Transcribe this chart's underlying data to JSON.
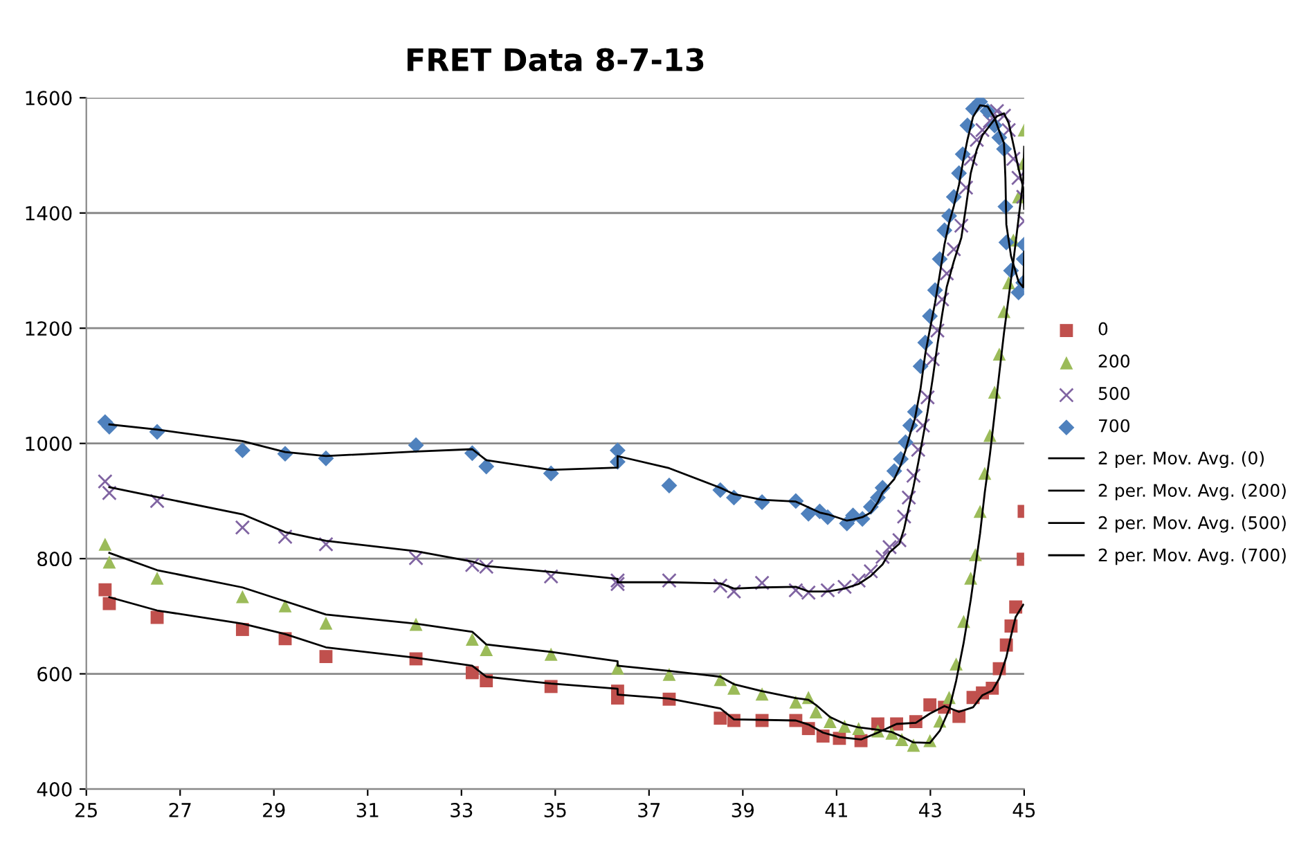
{
  "chart_data": {
    "type": "scatter",
    "title": "FRET Data 8-7-13",
    "xlim": [
      25,
      45
    ],
    "xticks": [
      25,
      27,
      29,
      31,
      33,
      35,
      37,
      39,
      41,
      43,
      45
    ],
    "ylim": [
      400,
      1600
    ],
    "yticks": [
      400,
      600,
      800,
      1000,
      1200,
      1400,
      1600
    ],
    "grid": "y",
    "legend": "right",
    "series": [
      {
        "name": "0",
        "color": "#c0504d",
        "marker": "square",
        "x": [
          25.4,
          25.49,
          26.51,
          28.33,
          29.24,
          30.11,
          32.03,
          33.23,
          33.53,
          34.91,
          36.33,
          36.33,
          37.43,
          38.52,
          38.81,
          39.41,
          40.13,
          40.4,
          40.71,
          41.06,
          41.52,
          41.88,
          42.28,
          42.69,
          42.99,
          43.3,
          43.61,
          43.91,
          44.11,
          44.32,
          44.47,
          44.62,
          44.72,
          44.82,
          44.98,
          45.0
        ],
        "values": [
          746,
          722,
          698,
          677,
          661,
          630,
          626,
          602,
          588,
          578,
          570,
          558,
          556,
          523,
          519,
          519,
          519,
          505,
          492,
          488,
          484,
          513,
          513,
          517,
          546,
          542,
          526,
          559,
          567,
          575,
          609,
          650,
          683,
          716,
          799,
          882
        ]
      },
      {
        "name": "200",
        "color": "#9bbb59",
        "marker": "triangle",
        "x": [
          25.4,
          25.49,
          26.51,
          28.33,
          29.24,
          30.11,
          32.03,
          33.23,
          33.53,
          34.91,
          36.33,
          37.43,
          38.52,
          38.81,
          39.41,
          40.13,
          40.4,
          40.56,
          40.86,
          41.17,
          41.47,
          41.88,
          42.18,
          42.39,
          42.64,
          42.99,
          43.2,
          43.4,
          43.55,
          43.71,
          43.86,
          43.96,
          44.06,
          44.16,
          44.27,
          44.37,
          44.47,
          44.57,
          44.67,
          44.77,
          44.88,
          44.98,
          45.0
        ],
        "values": [
          825,
          794,
          766,
          734,
          718,
          688,
          686,
          660,
          642,
          634,
          610,
          599,
          590,
          575,
          565,
          551,
          559,
          534,
          517,
          509,
          505,
          501,
          497,
          486,
          476,
          484,
          518,
          559,
          617,
          691,
          766,
          807,
          882,
          948,
          1014,
          1089,
          1155,
          1229,
          1279,
          1353,
          1428,
          1486,
          1544
        ]
      },
      {
        "name": "500",
        "color": "#8064a2",
        "marker": "cross",
        "x": [
          25.4,
          25.49,
          26.51,
          28.33,
          29.24,
          30.11,
          32.03,
          33.23,
          33.53,
          34.91,
          36.33,
          36.33,
          37.43,
          38.52,
          38.81,
          39.41,
          40.13,
          40.4,
          40.81,
          41.17,
          41.47,
          41.73,
          41.98,
          42.13,
          42.34,
          42.44,
          42.54,
          42.64,
          42.74,
          42.84,
          42.94,
          43.05,
          43.15,
          43.25,
          43.35,
          43.5,
          43.66,
          43.76,
          43.86,
          43.99,
          44.11,
          44.27,
          44.42,
          44.57,
          44.67,
          44.77,
          44.88,
          44.98,
          45.0
        ],
        "values": [
          934,
          914,
          900,
          854,
          838,
          825,
          801,
          789,
          786,
          769,
          762,
          756,
          762,
          753,
          743,
          758,
          745,
          741,
          745,
          751,
          762,
          778,
          803,
          820,
          832,
          873,
          906,
          944,
          989,
          1031,
          1080,
          1146,
          1196,
          1250,
          1295,
          1337,
          1378,
          1444,
          1494,
          1527,
          1544,
          1560,
          1577,
          1569,
          1544,
          1494,
          1461,
          1428,
          1386
        ]
      },
      {
        "name": "700",
        "color": "#4f81bd",
        "marker": "diamond",
        "x": [
          25.4,
          25.49,
          26.51,
          28.33,
          29.24,
          30.11,
          32.03,
          33.23,
          33.53,
          34.91,
          36.33,
          36.33,
          37.43,
          38.52,
          38.81,
          39.41,
          40.13,
          40.4,
          40.64,
          40.81,
          41.22,
          41.35,
          41.55,
          41.73,
          41.88,
          41.98,
          42.23,
          42.37,
          42.47,
          42.57,
          42.67,
          42.79,
          42.89,
          42.99,
          43.1,
          43.2,
          43.3,
          43.4,
          43.5,
          43.61,
          43.69,
          43.79,
          43.91,
          44.06,
          44.22,
          44.37,
          44.47,
          44.57,
          44.6,
          44.62,
          44.72,
          44.88,
          44.98,
          44.99,
          45.0
        ],
        "values": [
          1037,
          1029,
          1020,
          988,
          982,
          974,
          997,
          983,
          960,
          948,
          988,
          968,
          927,
          919,
          906,
          898,
          900,
          878,
          882,
          872,
          861,
          875,
          869,
          890,
          906,
          923,
          952,
          973,
          1002,
          1031,
          1055,
          1134,
          1175,
          1221,
          1266,
          1320,
          1370,
          1395,
          1428,
          1469,
          1502,
          1552,
          1581,
          1593,
          1577,
          1552,
          1531,
          1511,
          1411,
          1349,
          1300,
          1262,
          1279,
          1320,
          1345
        ]
      },
      {
        "name": "2 per. Mov. Avg. (0)",
        "type": "line",
        "color": "#000000",
        "marker": "none",
        "x": [
          25.49,
          26.51,
          28.33,
          29.24,
          30.11,
          32.03,
          33.23,
          33.53,
          34.91,
          36.33,
          36.33,
          37.43,
          38.52,
          38.81,
          40.13,
          40.4,
          40.71,
          41.06,
          41.52,
          41.88,
          42.28,
          42.69,
          42.99,
          43.3,
          43.61,
          43.91,
          44.11,
          44.32,
          44.47,
          44.62,
          44.72,
          44.82,
          44.98
        ],
        "values": [
          733,
          710,
          687,
          669,
          646,
          628,
          614,
          595,
          583,
          574,
          564,
          557,
          540,
          521,
          519,
          512,
          498,
          490,
          486,
          498,
          513,
          515,
          531,
          544,
          534,
          542,
          563,
          571,
          592,
          629,
          666,
          699,
          720
        ]
      },
      {
        "name": "2 per. Mov. Avg. (200)",
        "type": "line",
        "color": "#000000",
        "marker": "none",
        "x": [
          25.49,
          26.51,
          28.33,
          29.24,
          30.11,
          32.03,
          33.23,
          33.53,
          34.91,
          36.33,
          36.33,
          37.43,
          38.52,
          38.81,
          39.41,
          40.13,
          40.4,
          40.56,
          40.86,
          41.17,
          41.47,
          41.88,
          42.18,
          42.39,
          42.64,
          42.99,
          43.2,
          43.4,
          43.55,
          43.71,
          43.86,
          43.96,
          44.06,
          44.16,
          44.27,
          44.37,
          44.47,
          44.57,
          44.67,
          44.77,
          44.88,
          44.98,
          45.0
        ],
        "values": [
          810,
          780,
          750,
          726,
          703,
          687,
          673,
          651,
          638,
          622,
          614,
          605,
          595,
          582,
          570,
          558,
          555,
          546,
          525,
          513,
          507,
          503,
          499,
          491,
          481,
          480,
          501,
          538,
          588,
          654,
          728,
          786,
          844,
          915,
          981,
          1051,
          1122,
          1192,
          1254,
          1316,
          1390,
          1457,
          1515
        ]
      },
      {
        "name": "2 per. Mov. Avg. (500)",
        "type": "line",
        "color": "#000000",
        "marker": "none",
        "x": [
          25.49,
          26.51,
          28.33,
          29.24,
          30.11,
          32.03,
          33.23,
          33.53,
          34.91,
          36.33,
          36.33,
          37.43,
          38.52,
          38.81,
          39.41,
          40.13,
          40.4,
          40.81,
          41.17,
          41.47,
          41.73,
          41.98,
          42.13,
          42.34,
          42.44,
          42.54,
          42.64,
          42.74,
          42.84,
          42.94,
          43.05,
          43.15,
          43.25,
          43.35,
          43.5,
          43.66,
          43.76,
          43.86,
          43.99,
          44.11,
          44.27,
          44.42,
          44.57,
          44.67,
          44.77,
          44.88,
          44.98,
          45.0
        ],
        "values": [
          924,
          907,
          877,
          846,
          831,
          813,
          795,
          787,
          777,
          765,
          759,
          759,
          757,
          748,
          750,
          751,
          743,
          743,
          748,
          756,
          770,
          790,
          811,
          826,
          852,
          889,
          925,
          966,
          1010,
          1055,
          1113,
          1171,
          1223,
          1272,
          1316,
          1357,
          1411,
          1469,
          1510,
          1535,
          1552,
          1568,
          1573,
          1556,
          1519,
          1477,
          1444,
          1407
        ]
      },
      {
        "name": "2 per. Mov. Avg. (700)",
        "type": "line",
        "color": "#000000",
        "marker": "none",
        "x": [
          25.49,
          26.51,
          28.33,
          29.24,
          30.11,
          32.03,
          33.23,
          33.53,
          34.91,
          36.33,
          36.33,
          37.43,
          38.52,
          38.81,
          39.41,
          40.13,
          40.4,
          40.64,
          40.81,
          41.22,
          41.35,
          41.55,
          41.73,
          41.88,
          41.98,
          42.23,
          42.37,
          42.47,
          42.57,
          42.67,
          42.79,
          42.89,
          42.99,
          43.1,
          43.2,
          43.3,
          43.4,
          43.5,
          43.61,
          43.69,
          43.79,
          43.91,
          44.06,
          44.22,
          44.37,
          44.47,
          44.57,
          44.6,
          44.62,
          44.72,
          44.88,
          44.98,
          44.99,
          45.0
        ],
        "values": [
          1033,
          1024,
          1004,
          985,
          978,
          986,
          990,
          971,
          954,
          958,
          978,
          957,
          923,
          912,
          902,
          899,
          889,
          880,
          877,
          866,
          868,
          872,
          880,
          898,
          915,
          938,
          963,
          988,
          1017,
          1043,
          1095,
          1155,
          1198,
          1244,
          1293,
          1345,
          1383,
          1412,
          1449,
          1486,
          1527,
          1567,
          1587,
          1585,
          1565,
          1542,
          1521,
          1461,
          1380,
          1325,
          1281,
          1271,
          1300,
          1333
        ]
      }
    ]
  }
}
